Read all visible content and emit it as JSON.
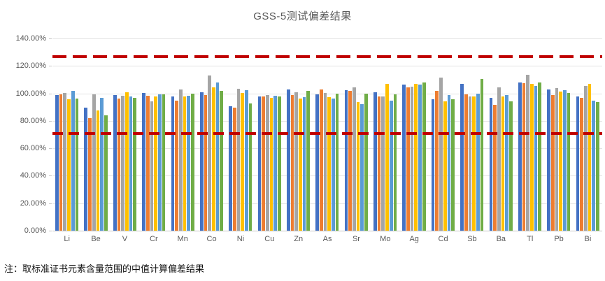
{
  "title": "GSS-5测试偏差结果",
  "note": "注：取标准证书元素含量范围的中值计算偏差结果",
  "y_axis": {
    "labels": [
      "140.00%",
      "120.00%",
      "100.00%",
      "80.00%",
      "60.00%",
      "40.00%",
      "20.00%",
      "0.00%"
    ],
    "min": 0,
    "max": 140,
    "step": 20
  },
  "chart_data": {
    "type": "bar",
    "title": "GSS-5测试偏差结果",
    "xlabel": "",
    "ylabel": "",
    "ylim": [
      0,
      140
    ],
    "ytick_format": "percent",
    "grid": true,
    "legend": "none",
    "categories": [
      "Li",
      "Be",
      "V",
      "Cr",
      "Mn",
      "Co",
      "Ni",
      "Cu",
      "Zn",
      "As",
      "Sr",
      "Mo",
      "Ag",
      "Cd",
      "Sb",
      "Ba",
      "Tl",
      "Pb",
      "Bi"
    ],
    "series": [
      {
        "name": "series-blue",
        "color": "#4472C4",
        "values": [
          99,
          89.5,
          99,
          100.5,
          97.5,
          101,
          90.5,
          98,
          103,
          99.5,
          102.5,
          101,
          106.5,
          95.5,
          107,
          96.5,
          108,
          103,
          97.5
        ]
      },
      {
        "name": "series-orange",
        "color": "#ED7D31",
        "values": [
          99.5,
          82,
          96,
          98.5,
          94.5,
          99,
          89.5,
          98,
          99,
          103,
          102,
          98,
          104.5,
          102,
          99.5,
          91.5,
          107.5,
          99,
          96.5
        ]
      },
      {
        "name": "series-gray",
        "color": "#A5A5A5",
        "values": [
          100.5,
          99.5,
          98.5,
          94,
          103,
          113,
          103.5,
          99,
          101,
          100.5,
          104.5,
          98,
          105,
          111.5,
          97.5,
          104.5,
          113.5,
          104,
          105.5
        ]
      },
      {
        "name": "series-gold",
        "color": "#FFC000",
        "values": [
          95.5,
          87.5,
          101,
          98,
          98,
          104.5,
          100.5,
          96.5,
          96,
          97,
          93.5,
          107,
          107,
          94,
          98,
          98,
          107,
          101.5,
          107
        ]
      },
      {
        "name": "series-lightblue",
        "color": "#5B9BD5",
        "values": [
          102,
          96.5,
          98,
          99.5,
          98.5,
          108,
          102.5,
          98.5,
          97,
          96,
          92,
          94.5,
          106.5,
          99,
          100,
          99,
          105.5,
          102.5,
          94.5
        ]
      },
      {
        "name": "series-green",
        "color": "#70AD47",
        "values": [
          96,
          84,
          96.5,
          99.5,
          100,
          102,
          92.5,
          98,
          102,
          100,
          100,
          99.5,
          108,
          95.5,
          110.5,
          94,
          108,
          100.5,
          93.5
        ]
      }
    ],
    "reference_lines": [
      {
        "value": 127,
        "color": "#C00000",
        "style": "dashed",
        "position": "upper"
      },
      {
        "value": 71,
        "color": "#C00000",
        "style": "dashed",
        "position": "lower"
      }
    ]
  },
  "colors": {
    "title_text": "#595959",
    "axis_text": "#595959",
    "gridline": "#E3E3E3",
    "reference_line": "#C00000",
    "background": "#FFFFFF"
  }
}
